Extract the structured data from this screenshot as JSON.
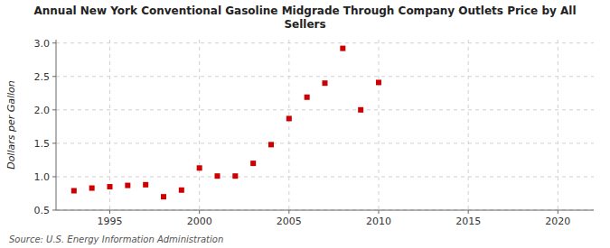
{
  "chart_data": {
    "type": "scatter",
    "title": "Annual New York Conventional Gasoline Midgrade Through Company Outlets Price by All\nSellers",
    "y_label": "Dollars per Gallon",
    "annotations": [
      "Source: U.S. Energy Information Administration"
    ],
    "x": [
      1993,
      1994,
      1995,
      1996,
      1997,
      1998,
      1999,
      2000,
      2001,
      2002,
      2003,
      2004,
      2005,
      2006,
      2007,
      2008,
      2009,
      2010
    ],
    "values": [
      0.79,
      0.83,
      0.85,
      0.87,
      0.88,
      0.7,
      0.8,
      1.13,
      1.01,
      1.01,
      1.2,
      1.48,
      1.87,
      2.19,
      2.4,
      2.92,
      2.0,
      2.41
    ],
    "color": "#cc0000",
    "marker": "square",
    "xlim": [
      1992,
      2022
    ],
    "ylim": [
      0.5,
      3.05
    ],
    "xticks": [
      1995,
      2000,
      2005,
      2010,
      2015,
      2020
    ],
    "yticks": [
      0.5,
      {
        "value": 1.0,
        "label": "1.0"
      },
      1.5,
      {
        "value": 2.0,
        "label": "2.0"
      },
      2.5,
      {
        "value": 3.0,
        "label": "3.0"
      }
    ],
    "grid": true
  }
}
